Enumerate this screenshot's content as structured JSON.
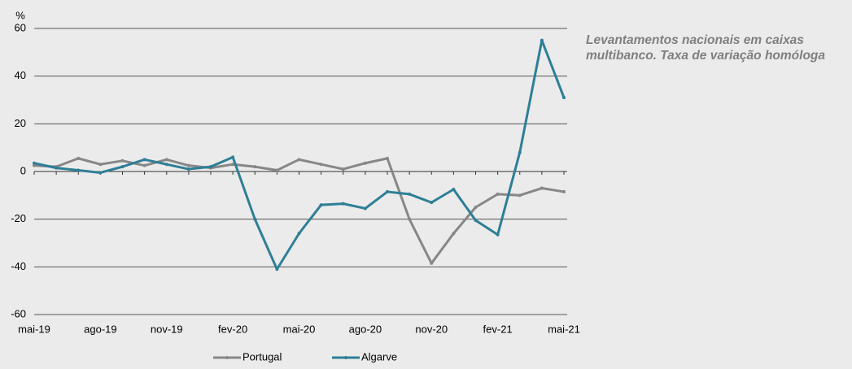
{
  "chart_data": {
    "type": "line",
    "title": "Levantamentos nacionais em caixas multibanco. Taxa de variação homóloga",
    "y_label": "%",
    "categories": [
      "mai-19",
      null,
      null,
      "ago-19",
      null,
      null,
      "nov-19",
      null,
      null,
      "fev-20",
      null,
      null,
      "mai-20",
      null,
      null,
      "ago-20",
      null,
      null,
      "nov-20",
      null,
      null,
      "fev-21",
      null,
      null,
      "mai-21"
    ],
    "series": [
      {
        "name": "Portugal",
        "color": "#878787",
        "values": [
          2.5,
          2,
          5.5,
          3,
          4.5,
          2.5,
          5,
          2.5,
          1.5,
          3,
          2,
          0.5,
          5,
          3,
          1,
          3.5,
          5.5,
          -20,
          -38.5,
          -26,
          -15,
          -9.5,
          -10,
          -7,
          -8.5
        ]
      },
      {
        "name": "Algarve",
        "color": "#2e7f96",
        "values": [
          3.5,
          1.5,
          0.5,
          -0.5,
          2,
          5,
          3,
          1,
          2,
          6,
          -20,
          -41,
          -26,
          -14,
          -13.5,
          -15.5,
          -8.5,
          -9.5,
          -13,
          -7.5,
          -20.5,
          -26.5,
          8,
          55,
          31
        ]
      }
    ],
    "ylim": [
      -60,
      60
    ],
    "yticks": [
      -60,
      -40,
      -20,
      0,
      20,
      40,
      60
    ],
    "grid": true
  }
}
